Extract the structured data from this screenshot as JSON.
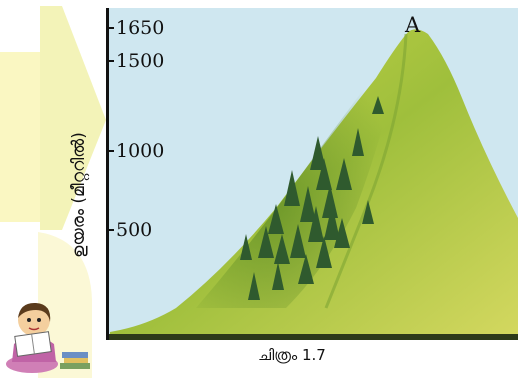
{
  "figure": {
    "caption": "ചിത്രം 1.7",
    "y_axis_label": "ഉയരം (മീറ്ററിൽ)",
    "peak_label": "A",
    "ticks": [
      {
        "label": "1650",
        "value": 1650
      },
      {
        "label": "1500",
        "value": 1500
      },
      {
        "label": "1000",
        "value": 1000
      },
      {
        "label": "500",
        "value": 500
      }
    ],
    "colors": {
      "sky": "#cfe7f0",
      "mountain_light": "#c9d64a",
      "mountain_dark": "#6f9a2a",
      "tree": "#2f5a2e",
      "arrow": "#f3f3b8",
      "panel": "#faf7c2"
    },
    "icons": [
      "reading-girl-icon",
      "pine-tree-icon"
    ]
  }
}
